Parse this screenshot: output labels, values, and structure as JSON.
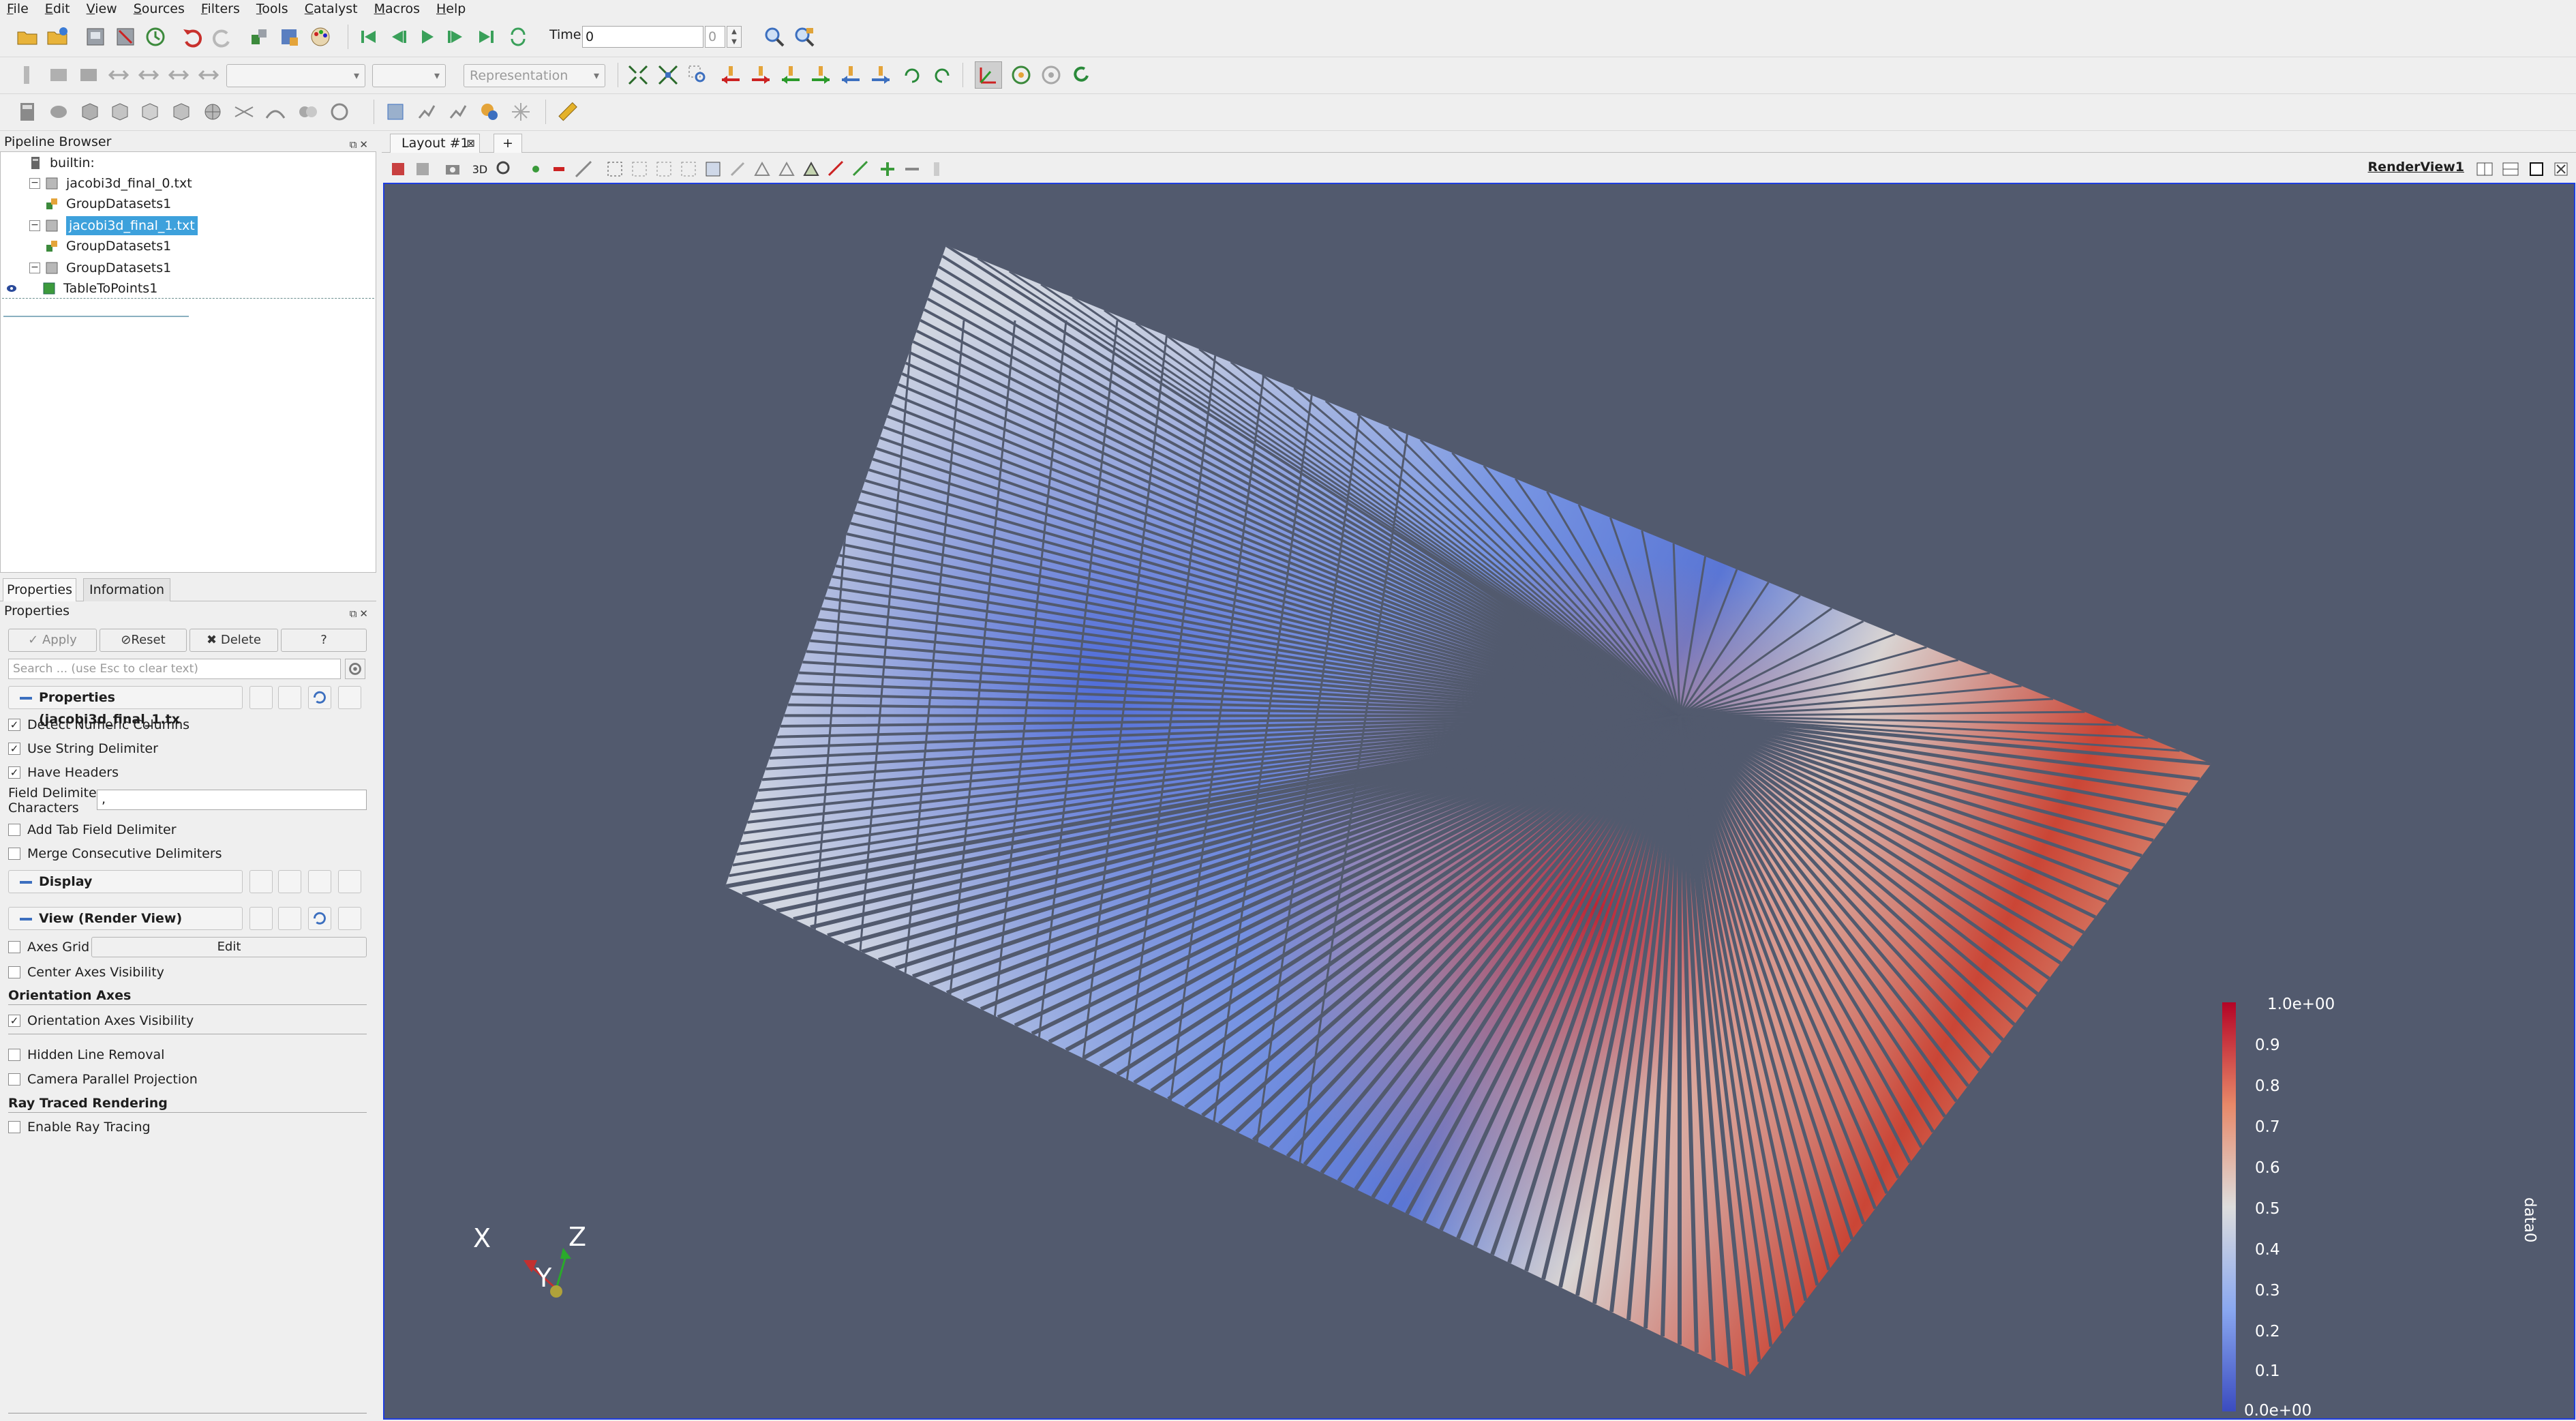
{
  "menu": [
    "File",
    "Edit",
    "View",
    "Sources",
    "Filters",
    "Tools",
    "Catalyst",
    "Macros",
    "Help"
  ],
  "time": {
    "label": "Time:",
    "value": "0",
    "step": "0"
  },
  "toolbar2": {
    "representation_placeholder": "Representation"
  },
  "pipeline": {
    "title": "Pipeline Browser",
    "items": [
      {
        "label": "builtin:"
      },
      {
        "label": "jacobi3d_final_0.txt"
      },
      {
        "label": "GroupDatasets1"
      },
      {
        "label": "jacobi3d_final_1.txt"
      },
      {
        "label": "GroupDatasets1"
      },
      {
        "label": "GroupDatasets1"
      },
      {
        "label": "TableToPoints1"
      }
    ]
  },
  "tabs": {
    "properties": "Properties",
    "information": "Information"
  },
  "properties": {
    "title": "Properties",
    "apply": "Apply",
    "reset": "Reset",
    "delete": "Delete",
    "help": "?",
    "search_placeholder": "Search ... (use Esc to clear text)",
    "section_reader": "Properties (jacobi3d_final_1.tx",
    "detect_numeric": "Detect Numeric Columns",
    "use_string_delim": "Use String Delimiter",
    "have_headers": "Have Headers",
    "field_delim_label_1": "Field Delimiter",
    "field_delim_label_2": "Characters",
    "field_delim_value": ",",
    "add_tab": "Add Tab Field Delimiter",
    "merge_delims": "Merge Consecutive Delimiters",
    "section_display": "Display",
    "section_view": "View (Render View)",
    "axes_grid": "Axes Grid",
    "axes_grid_edit": "Edit",
    "center_axes": "Center Axes Visibility",
    "orientation_axes_head": "Orientation Axes",
    "orientation_axes_vis": "Orientation Axes Visibility",
    "hidden_line": "Hidden Line Removal",
    "camera_parallel": "Camera Parallel Projection",
    "ray_traced_head": "Ray Traced Rendering",
    "enable_ray": "Enable Ray Tracing"
  },
  "layout": {
    "tab": "Layout #1",
    "add": "+"
  },
  "view": {
    "name": "RenderView1",
    "mode_3d": "3D"
  },
  "colorbar": {
    "title": "data0",
    "ticks": [
      "1.0e+00",
      "0.9",
      "0.8",
      "0.7",
      "0.6",
      "0.5",
      "0.4",
      "0.3",
      "0.2",
      "0.1",
      "0.0e+00"
    ],
    "colors": {
      "high": "#b40426",
      "mid": "#dddddd",
      "low": "#3b4cc0"
    }
  },
  "orientation": {
    "x": "X",
    "y": "Y",
    "z": "Z"
  },
  "colors": {
    "accent": "#3da1dc",
    "render_bg": "#525a6e",
    "view_border": "#1e3de0"
  }
}
